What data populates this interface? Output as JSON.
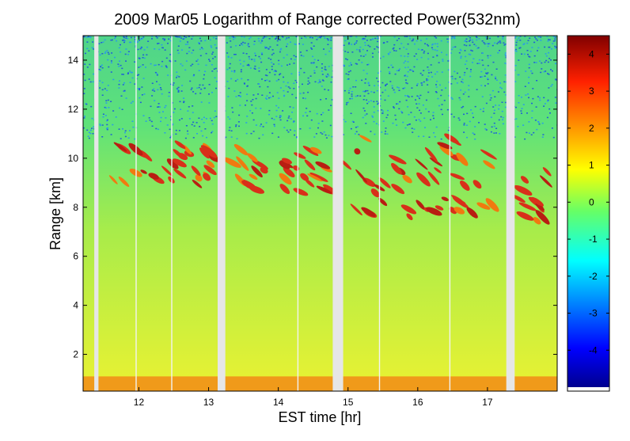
{
  "chart_data": {
    "type": "heatmap",
    "title": "2009 Mar05  Logarithm of Range corrected Power(532nm)",
    "xlabel": "EST time [hr]",
    "ylabel": "Range [km]",
    "xlim": [
      11.2,
      18.0
    ],
    "ylim": [
      0.5,
      15.0
    ],
    "xticks": [
      12,
      13,
      14,
      15,
      16,
      17
    ],
    "yticks": [
      2,
      4,
      6,
      8,
      10,
      12,
      14
    ],
    "colorbar": {
      "range": [
        -5,
        4.5
      ],
      "ticks": [
        -4,
        -3,
        -2,
        -1,
        0,
        1,
        2,
        3,
        4
      ]
    },
    "data_gaps_hr": [
      [
        11.36,
        11.42
      ],
      [
        13.13,
        13.24
      ],
      [
        14.78,
        14.93
      ],
      [
        17.27,
        17.39
      ]
    ],
    "thin_gaps_hr": [
      11.96,
      12.47,
      14.28,
      15.45,
      16.46
    ],
    "cloud_layers": [
      {
        "t_start": 11.6,
        "t_end": 13.1,
        "base_km": 8.9,
        "top_km": 10.6
      },
      {
        "t_start": 13.25,
        "t_end": 14.75,
        "base_km": 8.5,
        "top_km": 10.4
      },
      {
        "t_start": 14.95,
        "t_end": 17.25,
        "base_km": 7.6,
        "top_km": 10.8
      },
      {
        "t_start": 17.4,
        "t_end": 18.0,
        "base_km": 7.4,
        "top_km": 10.2
      }
    ],
    "boundary_layer_top_km": 1.1,
    "colormap": "jet",
    "colors": {
      "noise_low": "#1f5fd6",
      "background": "#55e07a",
      "near_surface": "#e6f03a",
      "boundary_layer": "#f09a1a",
      "cloud": "#d8301a",
      "gap": "#e6e6e6"
    }
  }
}
